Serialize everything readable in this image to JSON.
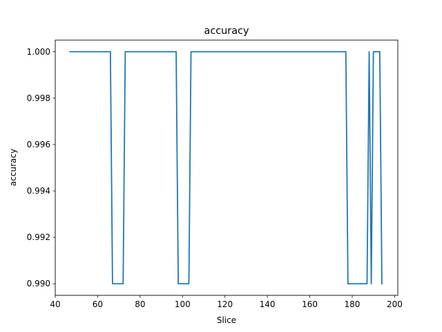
{
  "chart_data": {
    "type": "line",
    "title": "accuracy",
    "xlabel": "Slice",
    "ylabel": "accuracy",
    "xlim": [
      40,
      201.5
    ],
    "ylim": [
      0.9895,
      1.0005
    ],
    "xticks": [
      40,
      60,
      80,
      100,
      120,
      140,
      160,
      180,
      200
    ],
    "xtick_labels": [
      "40",
      "60",
      "80",
      "100",
      "120",
      "140",
      "160",
      "180",
      "200"
    ],
    "yticks": [
      0.99,
      0.992,
      0.994,
      0.996,
      0.998,
      1.0
    ],
    "ytick_labels": [
      "0.990",
      "0.992",
      "0.994",
      "0.996",
      "0.998",
      "1.000"
    ],
    "grid": false,
    "legend": "none",
    "color": "#1f77b4",
    "series": [
      {
        "x": [
          47,
          66,
          67,
          72,
          73,
          97,
          98,
          103,
          104,
          177,
          178,
          187,
          188,
          189,
          190,
          191,
          192,
          193,
          194
        ],
        "y": [
          1.0,
          1.0,
          0.99,
          0.99,
          1.0,
          1.0,
          0.99,
          0.99,
          1.0,
          1.0,
          0.99,
          0.99,
          1.0,
          0.99,
          1.0,
          1.0,
          1.0,
          1.0,
          0.99
        ]
      }
    ]
  }
}
